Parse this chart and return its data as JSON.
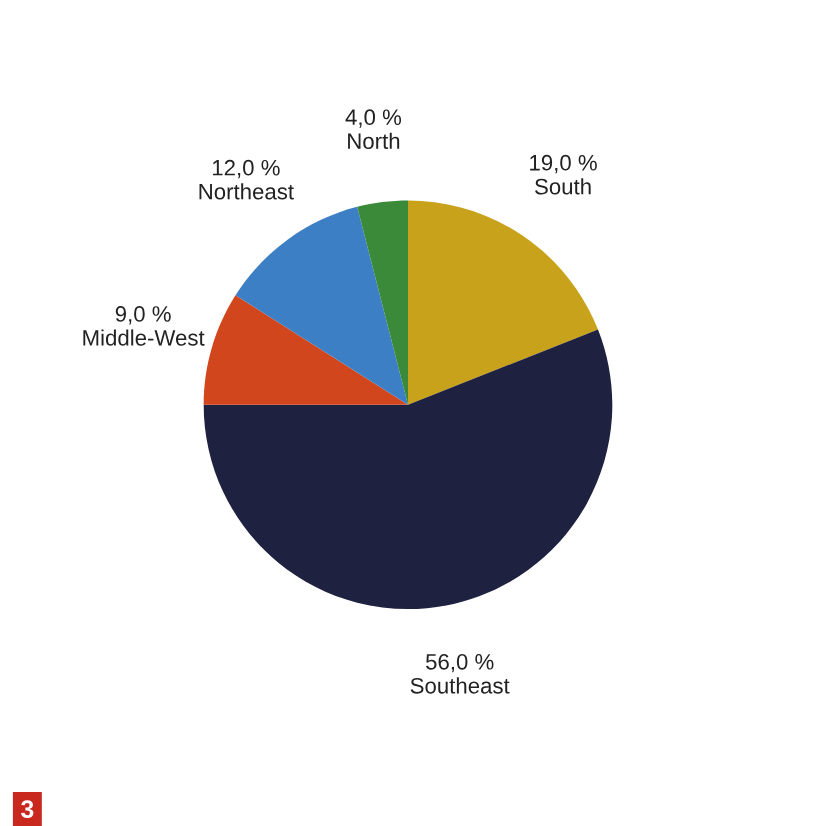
{
  "chart_data": {
    "type": "pie",
    "categories": [
      "South",
      "Southeast",
      "Middle-West",
      "Northeast",
      "North"
    ],
    "values": [
      19,
      56,
      9,
      12,
      4
    ],
    "value_labels": [
      "19,0 %",
      "56,0 %",
      "9,0 %",
      "12,0 %",
      "4,0 %"
    ],
    "colors": [
      "#c9a21c",
      "#1f2140",
      "#d2461e",
      "#3d7fc4",
      "#3a8a3a"
    ],
    "annotations": [
      "3"
    ]
  }
}
